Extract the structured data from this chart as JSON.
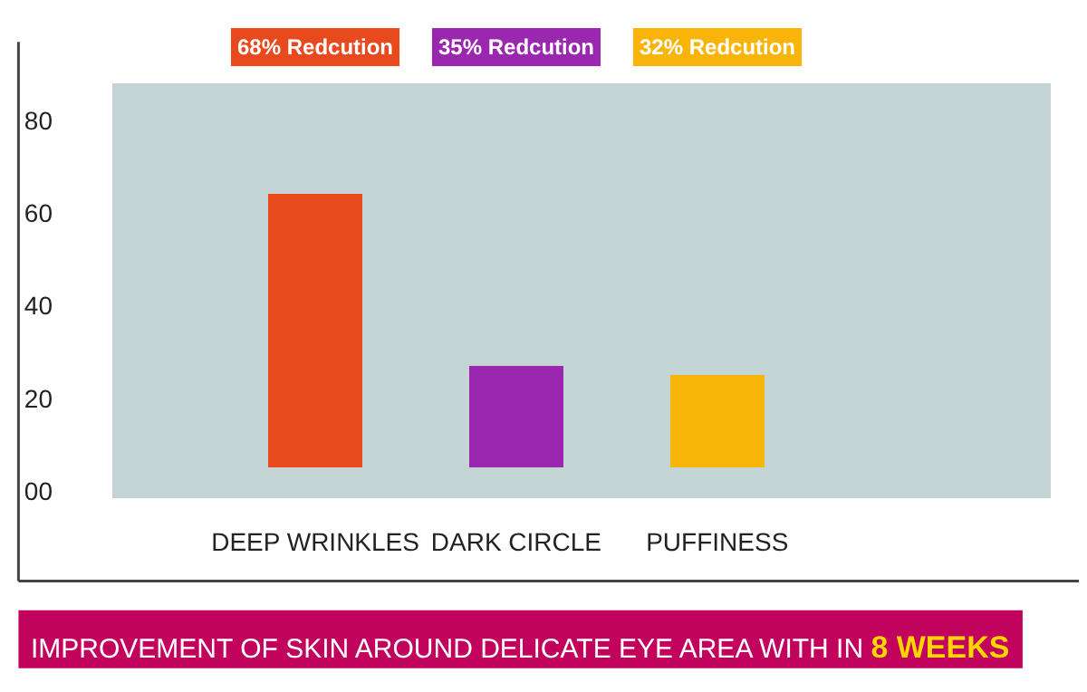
{
  "chart_data": {
    "type": "bar",
    "title": "IMPROVEMENT OF SKIN AROUND DELICATE EYE AREA WITH IN 8 WEEKS",
    "categories": [
      "DEEP WRINKLES",
      "DARK CIRCLE",
      "PUFFINESS"
    ],
    "values": [
      59,
      22,
      20
    ],
    "base": [
      5,
      5,
      5
    ],
    "colors": [
      "#e8491d",
      "#9b27b0",
      "#f9b40a"
    ],
    "annotations": [
      "68% Redcution",
      "35% Redcution",
      "32% Redcution"
    ],
    "ylim": [
      -1.5,
      88
    ],
    "yticks": [
      {
        "value": 0,
        "label": "00"
      },
      20,
      40,
      60,
      80
    ],
    "grid": false,
    "legend": false
  }
}
